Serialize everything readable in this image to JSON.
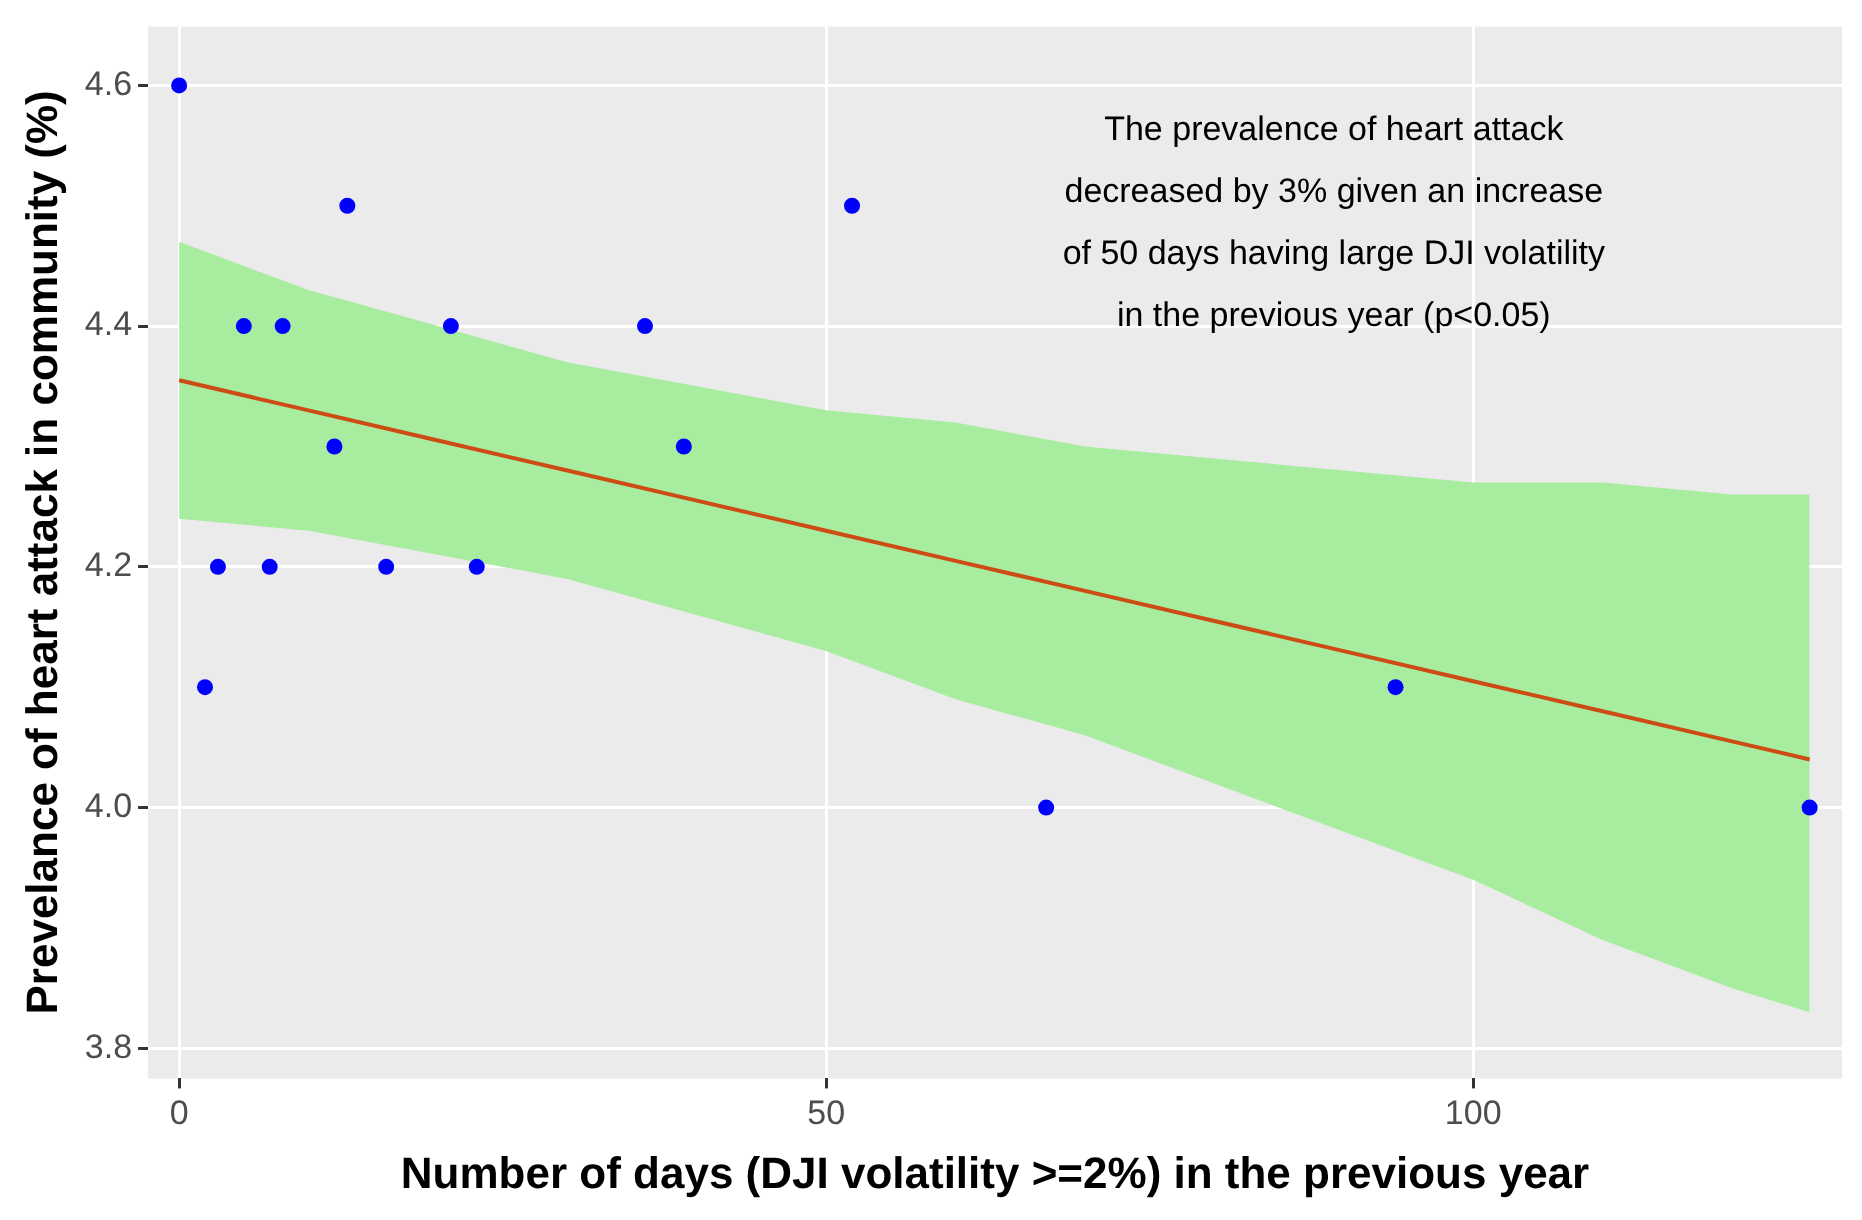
{
  "chart_data": {
    "type": "scatter",
    "xlabel": "Number of days (DJI volatility >=2%) in the previous year",
    "ylabel": "Prevelance of heart attack in community (%)",
    "annotations": [
      "The prevalence of heart attack\ndecreased by 3% given an increase\nof 50 days having large DJI volatility\nin the previous year (p<0.05)"
    ],
    "series": [
      {
        "marker": "circle",
        "color": "#0000ff",
        "x": [
          0,
          2,
          3,
          5,
          7,
          8,
          12,
          13,
          16,
          21,
          23,
          36,
          39,
          52,
          67,
          94,
          126
        ],
        "values": [
          4.6,
          4.1,
          4.2,
          4.4,
          4.2,
          4.4,
          4.3,
          4.5,
          4.2,
          4.4,
          4.2,
          4.4,
          4.3,
          4.5,
          4.0,
          4.1,
          4.0
        ]
      },
      {
        "type": "line",
        "marker": "none",
        "color": "#cc4c14",
        "x": [
          0,
          10,
          20,
          30,
          40,
          50,
          60,
          70,
          80,
          90,
          100,
          110,
          120,
          126
        ],
        "values": [
          4.355,
          4.33,
          4.305,
          4.28,
          4.255,
          4.23,
          4.205,
          4.18,
          4.155,
          4.13,
          4.105,
          4.08,
          4.055,
          4.04
        ],
        "lower": [
          4.24,
          4.23,
          4.21,
          4.19,
          4.16,
          4.13,
          4.09,
          4.06,
          4.02,
          3.98,
          3.94,
          3.89,
          3.85,
          3.83
        ],
        "upper": [
          4.47,
          4.43,
          4.4,
          4.37,
          4.35,
          4.33,
          4.32,
          4.3,
          4.29,
          4.28,
          4.27,
          4.27,
          4.26,
          4.26
        ]
      }
    ],
    "xlim": [
      -2.4,
      128.5
    ],
    "xticks": [
      0,
      50,
      100
    ],
    "ylim": [
      3.775,
      4.649
    ],
    "yticks": [
      {
        "value": 3.8,
        "label": "3.8"
      },
      {
        "value": 4.0,
        "label": "4.0"
      },
      {
        "value": 4.2,
        "label": "4.2"
      },
      {
        "value": 4.4,
        "label": "4.4"
      },
      {
        "value": 4.6,
        "label": "4.6"
      }
    ],
    "grid": true
  }
}
